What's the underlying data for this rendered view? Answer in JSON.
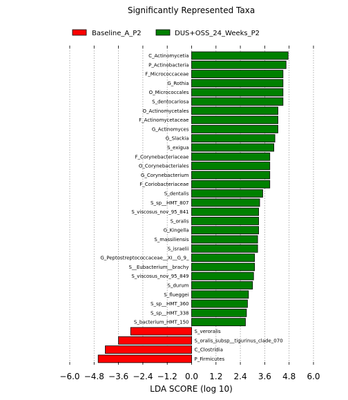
{
  "chart_data": {
    "type": "bar",
    "orientation": "horizontal",
    "title": "Significantly Represented Taxa",
    "xlabel": "LDA SCORE (log 10)",
    "xlim": [
      -6.0,
      6.0
    ],
    "xticks": [
      "−6.0",
      "−4.8",
      "−3.6",
      "−2.4",
      "−1.2",
      "0.0",
      "1.2",
      "2.4",
      "3.6",
      "4.8",
      "6.0"
    ],
    "xtick_values": [
      -6.0,
      -4.8,
      -3.6,
      -2.4,
      -1.2,
      0.0,
      1.2,
      2.4,
      3.6,
      4.8,
      6.0
    ],
    "grid": true,
    "legend_position": "top",
    "colors": {
      "Baseline_A_P2": "#ff0000",
      "DUS+OSS_24_Weeks_P2": "#008000"
    },
    "legend": [
      {
        "name": "Baseline_A_P2",
        "color": "#ff0000"
      },
      {
        "name": "DUS+OSS_24_Weeks_P2",
        "color": "#008000"
      }
    ],
    "bars": [
      {
        "label": "C_Actinomycetia",
        "value": 4.75,
        "group": "DUS+OSS_24_Weeks_P2"
      },
      {
        "label": "P_Actinobacteria",
        "value": 4.65,
        "group": "DUS+OSS_24_Weeks_P2"
      },
      {
        "label": "F_Micrococcaceae",
        "value": 4.5,
        "group": "DUS+OSS_24_Weeks_P2"
      },
      {
        "label": "G_Rothia",
        "value": 4.5,
        "group": "DUS+OSS_24_Weeks_P2"
      },
      {
        "label": "O_Micrococcales",
        "value": 4.5,
        "group": "DUS+OSS_24_Weeks_P2"
      },
      {
        "label": "S_dentocariosa",
        "value": 4.5,
        "group": "DUS+OSS_24_Weeks_P2"
      },
      {
        "label": "O_Actinomycetales",
        "value": 4.25,
        "group": "DUS+OSS_24_Weeks_P2"
      },
      {
        "label": "F_Actinomycetaceae",
        "value": 4.25,
        "group": "DUS+OSS_24_Weeks_P2"
      },
      {
        "label": "G_Actinomyces",
        "value": 4.25,
        "group": "DUS+OSS_24_Weeks_P2"
      },
      {
        "label": "G_Slackia",
        "value": 4.1,
        "group": "DUS+OSS_24_Weeks_P2"
      },
      {
        "label": "S_exigua",
        "value": 4.05,
        "group": "DUS+OSS_24_Weeks_P2"
      },
      {
        "label": "F_Corynebacteriaceae",
        "value": 3.85,
        "group": "DUS+OSS_24_Weeks_P2"
      },
      {
        "label": "O_Corynebacteriales",
        "value": 3.85,
        "group": "DUS+OSS_24_Weeks_P2"
      },
      {
        "label": "G_Corynebacterium",
        "value": 3.85,
        "group": "DUS+OSS_24_Weeks_P2"
      },
      {
        "label": "F_Coriobacteriaceae",
        "value": 3.85,
        "group": "DUS+OSS_24_Weeks_P2"
      },
      {
        "label": "S_dentalis",
        "value": 3.5,
        "group": "DUS+OSS_24_Weeks_P2"
      },
      {
        "label": "S_sp__HMT_807",
        "value": 3.35,
        "group": "DUS+OSS_24_Weeks_P2"
      },
      {
        "label": "S_viscosus_nov_95_841",
        "value": 3.3,
        "group": "DUS+OSS_24_Weeks_P2"
      },
      {
        "label": "S_oralis",
        "value": 3.3,
        "group": "DUS+OSS_24_Weeks_P2"
      },
      {
        "label": "G_Kingella",
        "value": 3.3,
        "group": "DUS+OSS_24_Weeks_P2"
      },
      {
        "label": "S_massiliensis",
        "value": 3.25,
        "group": "DUS+OSS_24_Weeks_P2"
      },
      {
        "label": "S_israelii",
        "value": 3.25,
        "group": "DUS+OSS_24_Weeks_P2"
      },
      {
        "label": "G_Peptostreptococcaceae__XI__G_9_",
        "value": 3.1,
        "group": "DUS+OSS_24_Weeks_P2"
      },
      {
        "label": "S__Eubacterium__brachy",
        "value": 3.1,
        "group": "DUS+OSS_24_Weeks_P2"
      },
      {
        "label": "S_viscosus_nov_95_849",
        "value": 3.05,
        "group": "DUS+OSS_24_Weeks_P2"
      },
      {
        "label": "S_durum",
        "value": 3.0,
        "group": "DUS+OSS_24_Weeks_P2"
      },
      {
        "label": "S_flueggei",
        "value": 2.8,
        "group": "DUS+OSS_24_Weeks_P2"
      },
      {
        "label": "S_sp__HMT_360",
        "value": 2.75,
        "group": "DUS+OSS_24_Weeks_P2"
      },
      {
        "label": "S_sp__HMT_338",
        "value": 2.7,
        "group": "DUS+OSS_24_Weeks_P2"
      },
      {
        "label": "S_bacterium_HMT_150",
        "value": 2.65,
        "group": "DUS+OSS_24_Weeks_P2"
      },
      {
        "label": "S_veroralis",
        "value": -3.0,
        "group": "Baseline_A_P2"
      },
      {
        "label": "S_oralis_subsp__tigurinus_clade_070",
        "value": -3.6,
        "group": "Baseline_A_P2"
      },
      {
        "label": "C_Clostridia",
        "value": -4.25,
        "group": "Baseline_A_P2"
      },
      {
        "label": "P_Firmicutes",
        "value": -4.6,
        "group": "Baseline_A_P2"
      }
    ]
  }
}
